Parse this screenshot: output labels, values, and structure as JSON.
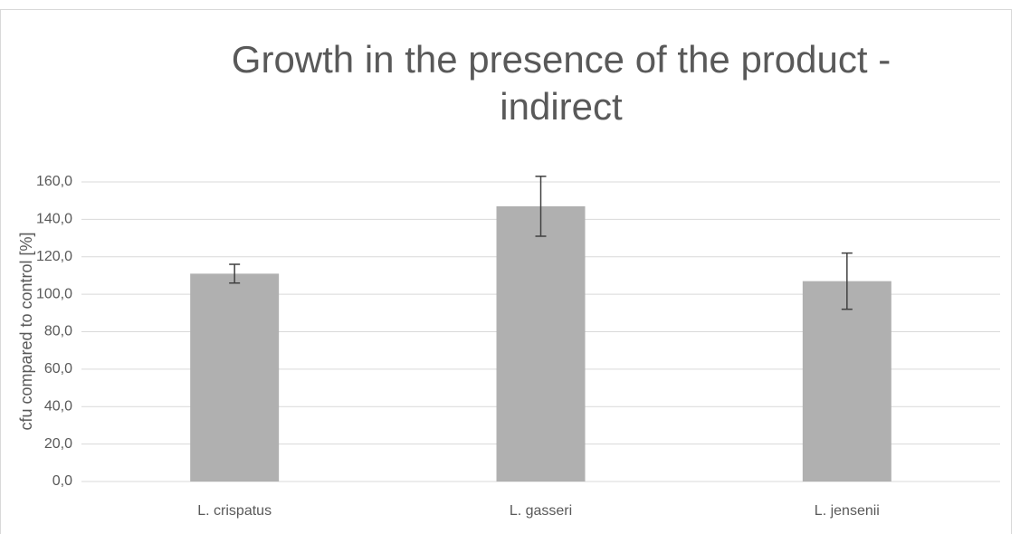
{
  "chart_data": {
    "type": "bar",
    "title": "Growth in the presence of the product - indirect",
    "ylabel": "cfu compared to control [%]",
    "categories": [
      "L. crispatus",
      "L. gasseri",
      "L. jensenii"
    ],
    "values": [
      111,
      147,
      107
    ],
    "errors": [
      5,
      16,
      15
    ],
    "color": "#b0b0b0",
    "ylim": [
      0,
      160
    ],
    "yticks": [
      {
        "value": 0,
        "label": "0,0"
      },
      {
        "value": 20,
        "label": "20,0"
      },
      {
        "value": 40,
        "label": "40,0"
      },
      {
        "value": 60,
        "label": "60,0"
      },
      {
        "value": 80,
        "label": "80,0"
      },
      {
        "value": 100,
        "label": "100,0"
      },
      {
        "value": 120,
        "label": "120,0"
      },
      {
        "value": 140,
        "label": "140,0"
      },
      {
        "value": 160,
        "label": "160,0"
      }
    ],
    "grid": true
  }
}
